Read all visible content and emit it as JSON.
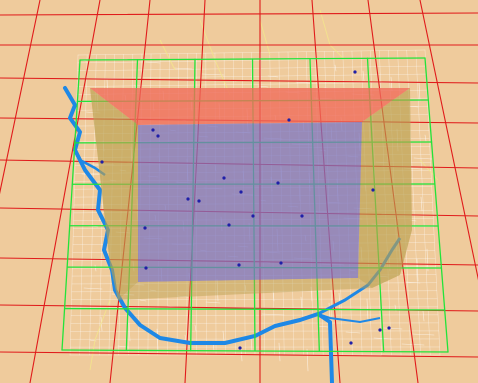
{
  "scene": {
    "view": "3d-perspective-map",
    "colors": {
      "ground": "#efcb9c",
      "outer_grid": "#e01b1b",
      "inner_grid": "#22e33a",
      "streets": "#ffffff",
      "minor_roads": "#f3e58c",
      "river": "#1e88e6",
      "volume_top": "#f06a5a",
      "volume_side": "#b8a04f",
      "volume_inner": "#7b74c2",
      "points": "#1f1fa8"
    },
    "layers": [
      {
        "name": "outer-grid",
        "kind": "grid-lines"
      },
      {
        "name": "city-streets",
        "kind": "street-network"
      },
      {
        "name": "river",
        "kind": "waterway"
      },
      {
        "name": "inner-grid",
        "kind": "grid-lines"
      },
      {
        "name": "volume-box",
        "kind": "extruded-region"
      },
      {
        "name": "sample-points",
        "kind": "markers"
      }
    ]
  }
}
